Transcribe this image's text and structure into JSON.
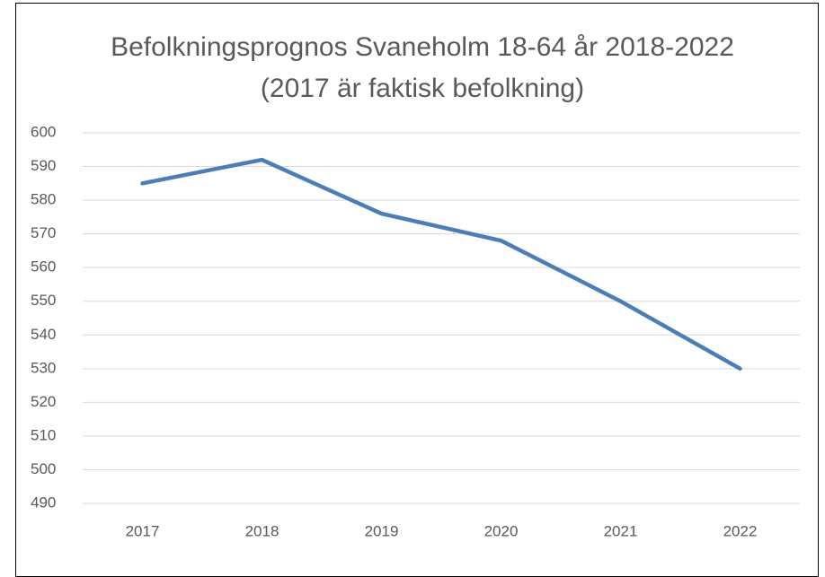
{
  "chart_data": {
    "type": "line",
    "title": "Befolkningsprognos Svaneholm 18-64 år 2018-2022 (2017 är faktisk befolkning)",
    "categories": [
      "2017",
      "2018",
      "2019",
      "2020",
      "2021",
      "2022"
    ],
    "series": [
      {
        "name": null,
        "color": "#4a7ebb",
        "values": [
          585,
          592,
          576,
          568,
          550,
          530
        ]
      }
    ],
    "ylim": [
      490,
      600
    ],
    "yticks": [
      490,
      500,
      510,
      520,
      530,
      540,
      550,
      560,
      570,
      580,
      590,
      600
    ],
    "grid": true
  }
}
